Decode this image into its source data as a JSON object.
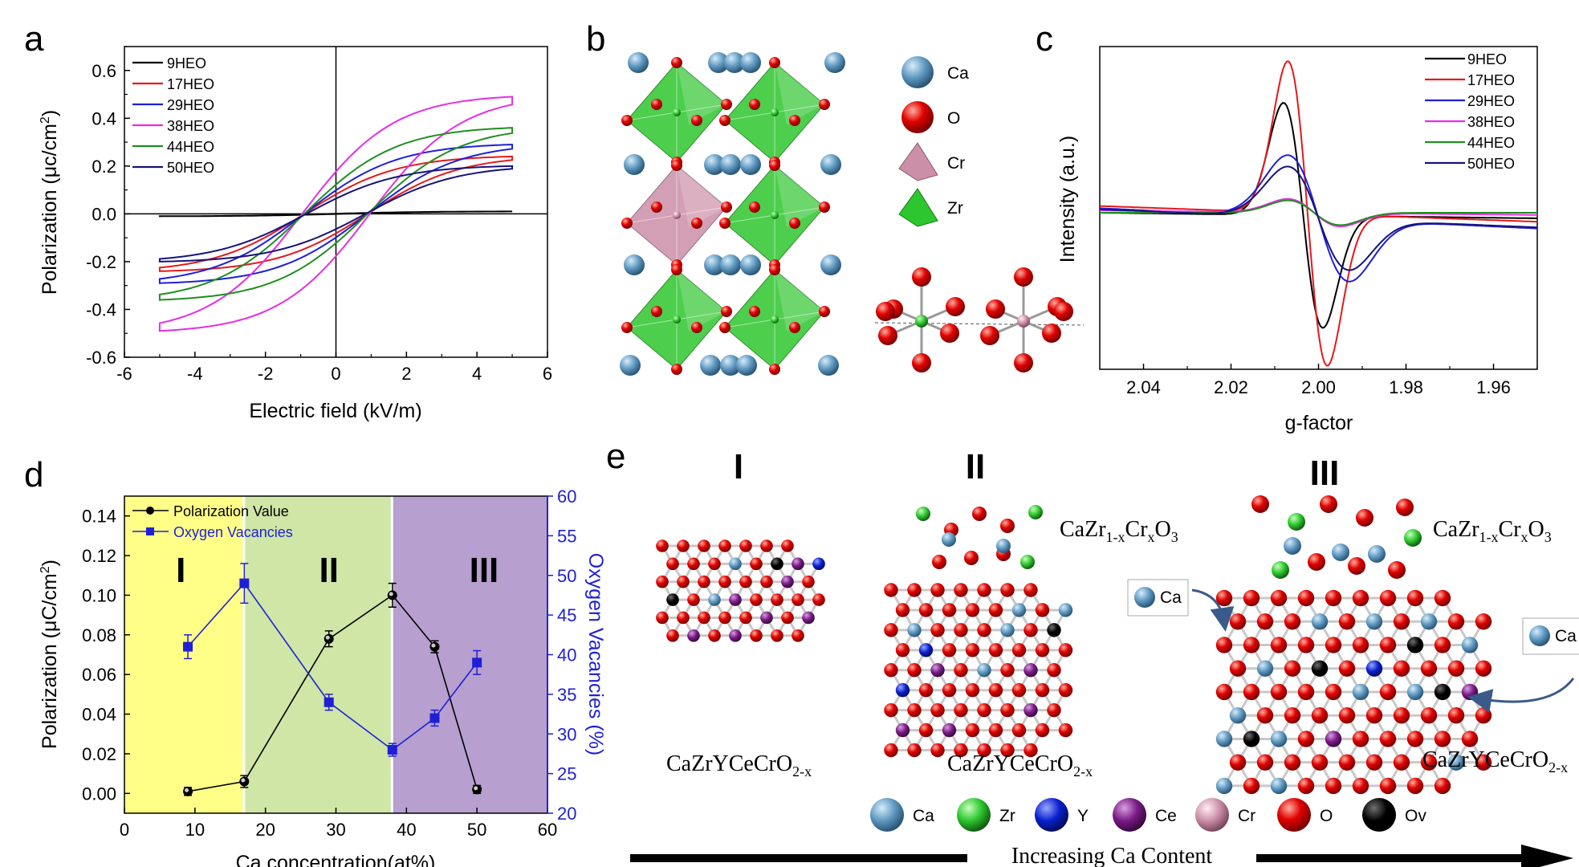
{
  "colors": {
    "black": "#000000",
    "red": "#e4191c",
    "blue": "#1f1fd6",
    "magenta": "#e52ee5",
    "green": "#1f8f1f",
    "navy": "#14147a",
    "ca": "#5f98c0",
    "o": "#e00000",
    "cr": "#cc8fa8",
    "zr": "#2ec62e",
    "y": "#0a1fd0",
    "ce": "#7a1a86",
    "ov": "#000000",
    "region_I": "#ffff88",
    "region_II": "#cfe6a7",
    "region_III": "#b79fd0"
  },
  "panels": {
    "a": {
      "letter": "a"
    },
    "b": {
      "letter": "b"
    },
    "c": {
      "letter": "c"
    },
    "d": {
      "letter": "d"
    },
    "e": {
      "letter": "e"
    }
  },
  "structure_b": {
    "legend": [
      {
        "symbol": "Ca",
        "label": "Ca"
      },
      {
        "symbol": "O",
        "label": "O"
      },
      {
        "symbol": "Cr",
        "label": "Cr"
      },
      {
        "symbol": "Zr",
        "label": "Zr"
      }
    ]
  },
  "schematic_e": {
    "stages": [
      {
        "numeral": "I",
        "formula_main": "CaZrYCeCrO",
        "formula_sub": "2-x"
      },
      {
        "numeral": "II",
        "formula_main": "CaZrYCeCrO",
        "formula_sub": "2-x",
        "overlayer_a": "CaZr",
        "overlayer_sub1": "1-x",
        "overlayer_b": "Cr",
        "overlayer_sub2": "x",
        "overlayer_c": "O",
        "overlayer_sub3": "3"
      },
      {
        "numeral": "III",
        "formula_main": "CaZrYCeCrO",
        "formula_sub": "2-x",
        "overlayer_a": "CaZr",
        "overlayer_sub1": "1-x",
        "overlayer_b": "Cr",
        "overlayer_sub2": "x",
        "overlayer_c": "O",
        "overlayer_sub3": "3"
      }
    ],
    "ca_tag": "Ca",
    "ca_tag_right": "Ca",
    "legend": [
      "Ca",
      "Zr",
      "Y",
      "Ce",
      "Cr",
      "O",
      "Ov"
    ],
    "arrow_label": "Increasing Ca Content"
  },
  "chart_data": [
    {
      "id": "a",
      "type": "line",
      "xlabel": "Electric field (kV/m)",
      "ylabel_main": "Polarization (",
      "ylabel_mu": "μ",
      "ylabel_unit": "c/cm",
      "ylabel_sup": "2",
      "ylabel_close": ")",
      "xlim": [
        -6,
        6
      ],
      "ylim": [
        -0.6,
        0.7
      ],
      "xticks": [
        -6,
        -4,
        -2,
        0,
        2,
        4,
        6
      ],
      "xtick_labels": [
        "-6",
        "-4",
        "-2",
        "0",
        "2",
        "4",
        "6"
      ],
      "yticks": [
        -0.6,
        -0.4,
        -0.2,
        0.0,
        0.2,
        0.4,
        0.6
      ],
      "ytick_labels": [
        "-0.6",
        "-0.4",
        "-0.2",
        "0.0",
        "0.2",
        "0.4",
        "0.6"
      ],
      "legend_position": "top-left",
      "series": [
        {
          "name": "9HEO",
          "color": "#000000",
          "ps": 0.01,
          "pr": 0.003,
          "ec": 0.2
        },
        {
          "name": "17HEO",
          "color": "#e4191c",
          "ps": 0.24,
          "pr": 0.07,
          "ec": 1.5
        },
        {
          "name": "29HEO",
          "color": "#1f1fd6",
          "ps": 0.29,
          "pr": 0.08,
          "ec": 1.5
        },
        {
          "name": "38HEO",
          "color": "#e52ee5",
          "ps": 0.49,
          "pr": 0.09,
          "ec": 1.6
        },
        {
          "name": "44HEO",
          "color": "#1f8f1f",
          "ps": 0.36,
          "pr": 0.08,
          "ec": 1.5
        },
        {
          "name": "50HEO",
          "color": "#14147a",
          "ps": 0.2,
          "pr": 0.07,
          "ec": 1.4
        }
      ]
    },
    {
      "id": "c",
      "type": "line",
      "xlabel": "g-factor",
      "ylabel": "Intensity (a.u.)",
      "xlim": [
        2.05,
        1.95
      ],
      "xticks": [
        2.04,
        2.02,
        2.0,
        1.98,
        1.96
      ],
      "xtick_labels": [
        "2.04",
        "2.02",
        "2.00",
        "1.98",
        "1.96"
      ],
      "legend_position": "top-right",
      "series": [
        {
          "name": "9HEO",
          "color": "#000000",
          "g0": 2.0035,
          "amp": 1.0,
          "width": 0.0045,
          "baseline_left": 0.0,
          "baseline_right": -0.05
        },
        {
          "name": "17HEO",
          "color": "#e4191c",
          "g0": 2.0025,
          "amp": 1.35,
          "width": 0.0045,
          "baseline_left": 0.06,
          "baseline_right": -0.08
        },
        {
          "name": "29HEO",
          "color": "#1f1fd6",
          "g0": 2.0,
          "amp": 0.55,
          "width": 0.007,
          "baseline_left": 0.04,
          "baseline_right": -0.14
        },
        {
          "name": "38HEO",
          "color": "#e52ee5",
          "g0": 2.001,
          "amp": 0.12,
          "width": 0.006,
          "baseline_left": 0.02,
          "baseline_right": -0.02
        },
        {
          "name": "44HEO",
          "color": "#1f8f1f",
          "g0": 2.001,
          "amp": 0.11,
          "width": 0.006,
          "baseline_left": 0.0,
          "baseline_right": 0.0
        },
        {
          "name": "50HEO",
          "color": "#14147a",
          "g0": 2.0,
          "amp": 0.45,
          "width": 0.007,
          "baseline_left": 0.03,
          "baseline_right": -0.13
        }
      ]
    },
    {
      "id": "d",
      "type": "line",
      "xlabel": "Ca concentration(at%)",
      "ylabel_main": "Polarization (",
      "ylabel_mu": "μ",
      "ylabel_unit": "C/cm",
      "ylabel_sup": "2",
      "ylabel_close": ")",
      "ylabel_right": "Oxygen Vacancies (%)",
      "xlim": [
        0,
        60
      ],
      "ylim": [
        -0.01,
        0.15
      ],
      "ylim_right": [
        20,
        60
      ],
      "xticks": [
        0,
        10,
        20,
        30,
        40,
        50,
        60
      ],
      "xtick_labels": [
        "0",
        "10",
        "20",
        "30",
        "40",
        "50",
        "60"
      ],
      "yticks": [
        0.0,
        0.02,
        0.04,
        0.06,
        0.08,
        0.1,
        0.12,
        0.14
      ],
      "ytick_labels": [
        "0.00",
        "0.02",
        "0.04",
        "0.06",
        "0.08",
        "0.10",
        "0.12",
        "0.14"
      ],
      "yticks_right": [
        20,
        25,
        30,
        35,
        40,
        45,
        50,
        55,
        60
      ],
      "ytick_labels_right": [
        "20",
        "25",
        "30",
        "35",
        "40",
        "45",
        "50",
        "55",
        "60"
      ],
      "regions": [
        {
          "label": "I",
          "x0": 0,
          "x1": 17,
          "color": "#ffff88"
        },
        {
          "label": "II",
          "x0": 17,
          "x1": 38,
          "color": "#cfe6a7"
        },
        {
          "label": "III",
          "x0": 38,
          "x1": 60,
          "color": "#b79fd0"
        }
      ],
      "legend_position": "top-left",
      "series": [
        {
          "name": "Polarization Value",
          "color": "#000000",
          "axis": "left",
          "x": [
            9,
            17,
            29,
            38,
            44,
            50
          ],
          "y": [
            0.001,
            0.006,
            0.078,
            0.1,
            0.074,
            0.002
          ],
          "err": [
            0.002,
            0.003,
            0.004,
            0.006,
            0.003,
            0.002
          ]
        },
        {
          "name": "Oxygen Vacancies",
          "color": "#1f1fd6",
          "axis": "right",
          "x": [
            9,
            17,
            29,
            38,
            44,
            50
          ],
          "y": [
            41,
            49,
            34,
            28,
            32,
            39
          ],
          "err": [
            1.5,
            2.5,
            1.0,
            0.8,
            1.0,
            1.5
          ]
        }
      ]
    }
  ]
}
